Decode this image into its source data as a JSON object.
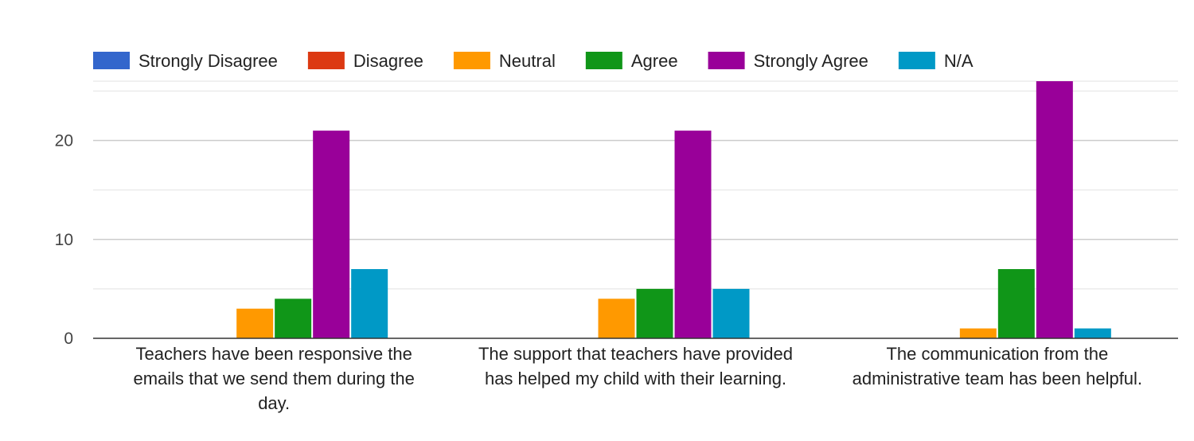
{
  "chart_data": {
    "type": "bar",
    "title": "",
    "xlabel": "",
    "ylabel": "",
    "ylim": [
      0,
      26
    ],
    "yticks": [
      0,
      10,
      20
    ],
    "grid": true,
    "legend_position": "top",
    "categories": [
      [
        "Teachers have been responsive the",
        "emails that we send them during the",
        "day."
      ],
      [
        "The support that teachers have provided",
        "has helped my child with their learning."
      ],
      [
        "The communication from the",
        "administrative team has been helpful."
      ]
    ],
    "series": [
      {
        "name": "Strongly Disagree",
        "color": "#3366cc",
        "values": [
          0,
          0,
          0
        ]
      },
      {
        "name": "Disagree",
        "color": "#dc3912",
        "values": [
          0,
          0,
          0
        ]
      },
      {
        "name": "Neutral",
        "color": "#ff9900",
        "values": [
          3,
          4,
          1
        ]
      },
      {
        "name": "Agree",
        "color": "#109618",
        "values": [
          4,
          5,
          7
        ]
      },
      {
        "name": "Strongly Agree",
        "color": "#990099",
        "values": [
          21,
          21,
          26
        ]
      },
      {
        "name": "N/A",
        "color": "#0099c6",
        "values": [
          7,
          5,
          1
        ]
      }
    ]
  }
}
